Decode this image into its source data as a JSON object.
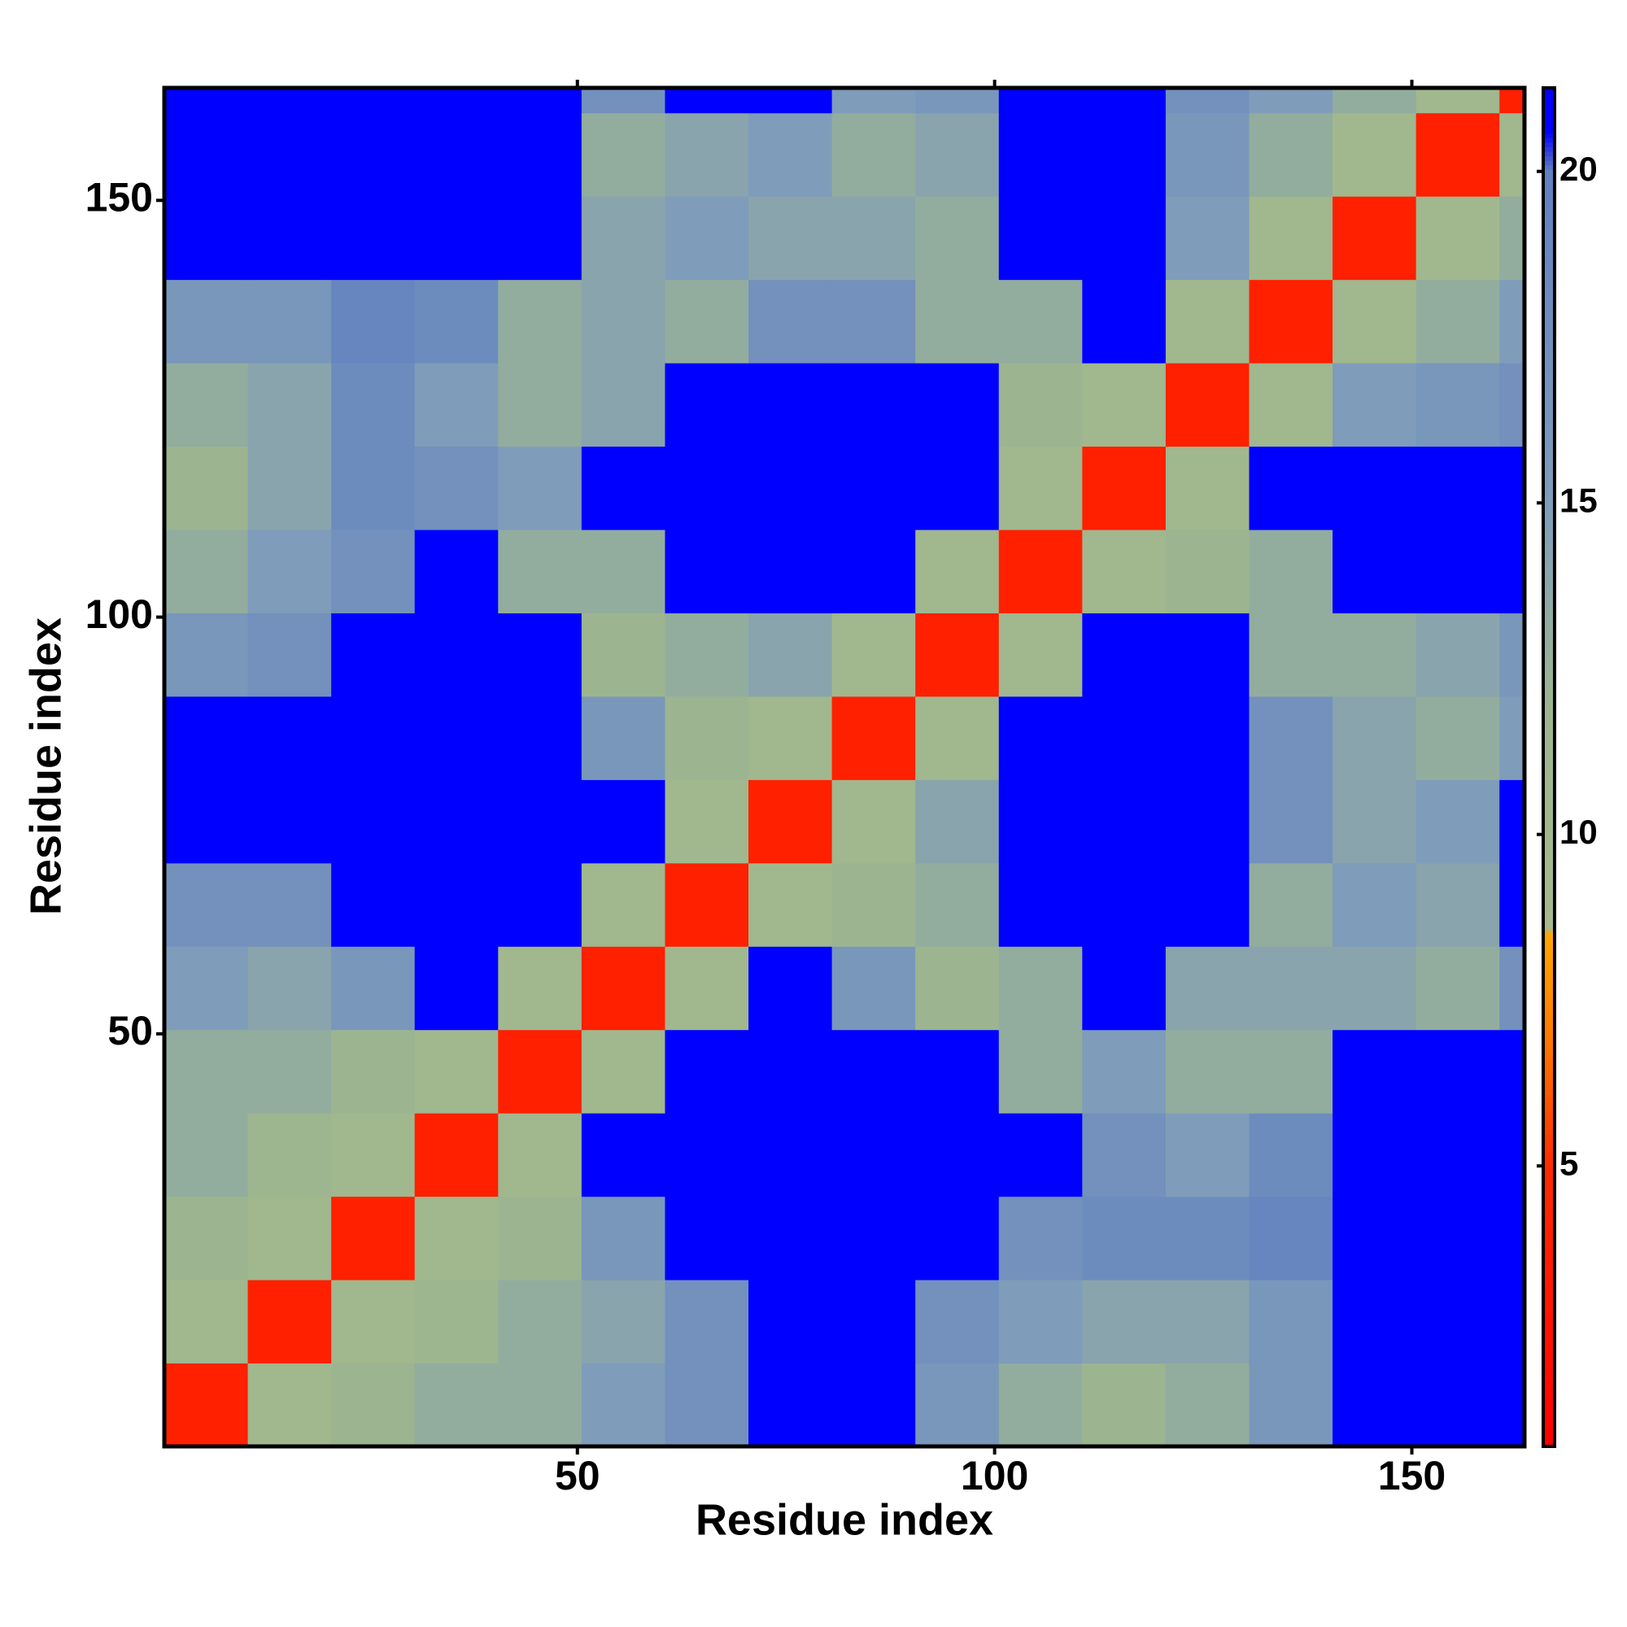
{
  "chart_data": {
    "type": "heatmap",
    "x_label": "Residue index",
    "y_label": "Residue index",
    "xbins": [
      0.5,
      10.5,
      20.5,
      30.5,
      40.5,
      50.5,
      60.5,
      70.5,
      80.5,
      90.5,
      100.5,
      110.5,
      120.5,
      130.5,
      140.5,
      150.5,
      160.5,
      163.5
    ],
    "ybins": [
      0.5,
      10.5,
      20.5,
      30.5,
      40.5,
      50.5,
      60.5,
      70.5,
      80.5,
      90.5,
      100.5,
      110.5,
      120.5,
      130.5,
      140.5,
      150.5,
      160.5,
      163.5
    ],
    "values": [
      [
        4,
        10,
        12,
        13,
        13,
        15,
        17,
        21,
        21,
        16,
        13,
        12,
        13,
        16,
        21,
        21,
        21
      ],
      [
        10,
        4,
        10,
        11,
        13,
        14,
        17,
        21,
        21,
        17,
        15,
        14,
        14,
        16,
        21,
        21,
        21
      ],
      [
        12,
        10,
        4,
        10,
        12,
        16,
        21,
        21,
        21,
        21,
        17,
        18,
        18,
        19,
        21,
        21,
        21
      ],
      [
        13,
        11,
        10,
        4,
        10,
        21,
        21,
        21,
        21,
        21,
        21,
        17,
        15,
        18,
        21,
        21,
        21
      ],
      [
        13,
        13,
        12,
        10,
        4,
        10,
        21,
        21,
        21,
        21,
        13,
        15,
        13,
        13,
        21,
        21,
        21
      ],
      [
        15,
        14,
        16,
        21,
        10,
        4,
        10,
        21,
        16,
        12,
        13,
        21,
        14,
        14,
        14,
        13,
        17
      ],
      [
        17,
        17,
        21,
        21,
        21,
        10,
        4,
        10,
        12,
        13,
        21,
        21,
        21,
        13,
        15,
        14,
        21
      ],
      [
        21,
        21,
        21,
        21,
        21,
        21,
        10,
        4,
        10,
        14,
        21,
        21,
        21,
        17,
        14,
        15,
        21
      ],
      [
        21,
        21,
        21,
        21,
        21,
        16,
        12,
        10,
        4,
        10,
        21,
        21,
        21,
        17,
        14,
        13,
        15
      ],
      [
        16,
        17,
        21,
        21,
        21,
        12,
        13,
        14,
        10,
        4,
        10,
        21,
        21,
        13,
        13,
        14,
        16
      ],
      [
        13,
        15,
        17,
        21,
        13,
        13,
        21,
        21,
        21,
        10,
        4,
        10,
        12,
        13,
        21,
        21,
        21
      ],
      [
        12,
        14,
        18,
        17,
        15,
        21,
        21,
        21,
        21,
        21,
        10,
        4,
        10,
        21,
        21,
        21,
        21
      ],
      [
        13,
        14,
        18,
        15,
        13,
        14,
        21,
        21,
        21,
        21,
        12,
        10,
        4,
        10,
        15,
        16,
        17
      ],
      [
        16,
        16,
        19,
        18,
        13,
        14,
        13,
        17,
        17,
        13,
        13,
        21,
        10,
        4,
        10,
        13,
        15
      ],
      [
        21,
        21,
        21,
        21,
        21,
        14,
        15,
        14,
        14,
        13,
        21,
        21,
        15,
        10,
        4,
        10,
        13
      ],
      [
        21,
        21,
        21,
        21,
        21,
        13,
        14,
        15,
        13,
        14,
        21,
        21,
        16,
        13,
        10,
        4,
        10
      ],
      [
        21,
        21,
        21,
        21,
        21,
        17,
        21,
        21,
        15,
        16,
        21,
        21,
        17,
        15,
        13,
        10,
        4
      ]
    ],
    "xlim": [
      0.5,
      163.5
    ],
    "ylim": [
      0.5,
      163.5
    ],
    "xticks": [
      50,
      100,
      150
    ],
    "yticks": [
      50,
      100,
      150
    ],
    "zlim": [
      0.77,
      21.26
    ],
    "zticks": [
      5,
      10,
      15,
      20
    ],
    "colorscale": [
      {
        "value": 0.77,
        "color": "#ff0000"
      },
      {
        "value": 5,
        "color": "#ff2a00"
      },
      {
        "value": 7,
        "color": "#ff7b00"
      },
      {
        "value": 8.5,
        "color": "#ffa500"
      },
      {
        "value": 8.6,
        "color": "#a4b98c"
      },
      {
        "value": 12,
        "color": "#9cb590"
      },
      {
        "value": 15,
        "color": "#7f9cba"
      },
      {
        "value": 20,
        "color": "#6181c0"
      },
      {
        "value": 20.6,
        "color": "#0000ff"
      },
      {
        "value": 21.26,
        "color": "#0000ff"
      }
    ]
  }
}
